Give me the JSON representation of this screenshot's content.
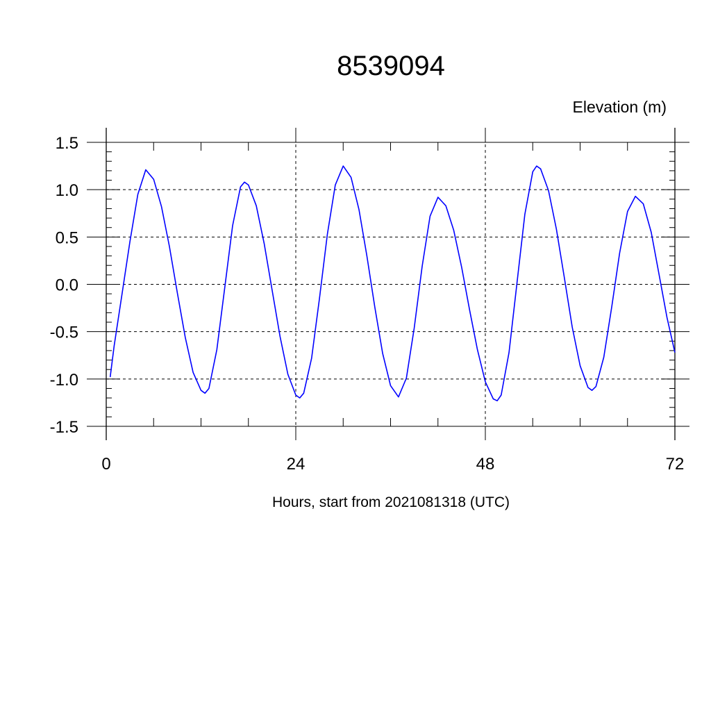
{
  "chart_data": {
    "type": "line",
    "title": "8539094",
    "ylabel": "Elevation (m)",
    "xlabel": "Hours, start from 2021081318 (UTC)",
    "xlim": [
      0,
      72
    ],
    "ylim": [
      -1.5,
      1.5
    ],
    "x_ticks": [
      0,
      24,
      48,
      72
    ],
    "x_tick_labels": [
      "0",
      "24",
      "48",
      "72"
    ],
    "y_ticks": [
      -1.5,
      -1.0,
      -0.5,
      0.0,
      0.5,
      1.0,
      1.5
    ],
    "y_tick_labels": [
      "-1.5",
      "-1.0",
      "-0.5",
      "0.0",
      "0.5",
      "1.0",
      "1.5"
    ],
    "grid": true,
    "series_color": "#0000ff",
    "series": [
      {
        "x": [
          0.5,
          1,
          2,
          3,
          4,
          5,
          6,
          7,
          8,
          9,
          10,
          11,
          12,
          12.5,
          13,
          14,
          15,
          16,
          17,
          17.5,
          18,
          19,
          20,
          21,
          22,
          23,
          24,
          24.5,
          25,
          26,
          27,
          28,
          29,
          30,
          31,
          32,
          33,
          34,
          35,
          36,
          37,
          38,
          39,
          40,
          41,
          42,
          43,
          44,
          45,
          46,
          47,
          48,
          49,
          49.5,
          50,
          51,
          52,
          53,
          54,
          54.5,
          55,
          56,
          57,
          58,
          59,
          60,
          61,
          61.5,
          62,
          63,
          64,
          65,
          66,
          67,
          68,
          69,
          70,
          71,
          72
        ],
        "y": [
          -0.98,
          -0.65,
          -0.1,
          0.45,
          0.95,
          1.21,
          1.11,
          0.82,
          0.4,
          -0.09,
          -0.56,
          -0.93,
          -1.12,
          -1.15,
          -1.1,
          -0.69,
          -0.04,
          0.62,
          1.03,
          1.08,
          1.05,
          0.83,
          0.43,
          -0.06,
          -0.55,
          -0.95,
          -1.17,
          -1.2,
          -1.15,
          -0.78,
          -0.15,
          0.53,
          1.05,
          1.25,
          1.13,
          0.79,
          0.3,
          -0.24,
          -0.73,
          -1.07,
          -1.19,
          -0.99,
          -0.46,
          0.19,
          0.72,
          0.92,
          0.83,
          0.57,
          0.18,
          -0.27,
          -0.69,
          -1.03,
          -1.21,
          -1.23,
          -1.17,
          -0.72,
          0.01,
          0.74,
          1.19,
          1.25,
          1.22,
          0.99,
          0.58,
          0.07,
          -0.45,
          -0.86,
          -1.09,
          -1.12,
          -1.08,
          -0.77,
          -0.24,
          0.33,
          0.77,
          0.93,
          0.85,
          0.55,
          0.1,
          -0.35,
          -0.72
        ]
      }
    ]
  }
}
